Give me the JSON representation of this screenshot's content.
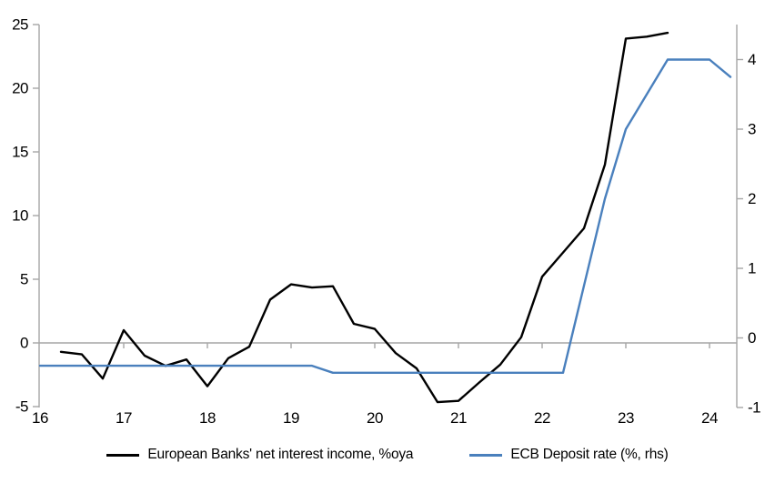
{
  "chart_data": {
    "type": "line",
    "title": "",
    "xlabel": "",
    "ylabel_left": "",
    "ylabel_right": "",
    "grid": "zero-line-only",
    "legend_position": "bottom-center",
    "x_axis": {
      "ticks": [
        16,
        17,
        18,
        19,
        20,
        21,
        22,
        23,
        24
      ],
      "range": [
        16,
        24.33
      ]
    },
    "left_axis": {
      "ticks": [
        -5,
        0,
        5,
        10,
        15,
        20,
        25
      ],
      "range": [
        -5,
        25
      ]
    },
    "right_axis": {
      "ticks": [
        -1,
        0,
        1,
        2,
        3,
        4
      ],
      "range": [
        -1,
        4.5
      ]
    },
    "series": [
      {
        "name": "European Banks' net interest income, %oya",
        "axis": "left",
        "color": "#000000",
        "x": [
          16.25,
          16.5,
          16.75,
          17.0,
          17.25,
          17.5,
          17.75,
          18.0,
          18.25,
          18.5,
          18.75,
          19.0,
          19.25,
          19.5,
          19.75,
          20.0,
          20.25,
          20.5,
          20.75,
          21.0,
          21.25,
          21.5,
          21.75,
          22.0,
          22.25,
          22.5,
          22.75,
          23.0,
          23.25,
          23.5
        ],
        "values": [
          -0.7,
          -0.9,
          -2.8,
          1.0,
          -1.0,
          -1.8,
          -1.3,
          -3.4,
          -1.2,
          -0.3,
          3.4,
          4.6,
          4.35,
          4.45,
          1.5,
          1.1,
          -0.8,
          -2.0,
          -4.65,
          -4.55,
          -3.1,
          -1.7,
          0.45,
          5.2,
          7.1,
          9.0,
          14.0,
          23.9,
          24.05,
          24.35
        ]
      },
      {
        "name": "ECB Deposit rate (%, rhs)",
        "axis": "right",
        "color": "#4a80bd",
        "x": [
          16.0,
          16.25,
          16.5,
          16.75,
          17.0,
          17.25,
          17.5,
          17.75,
          18.0,
          18.25,
          18.5,
          18.75,
          19.0,
          19.25,
          19.5,
          19.75,
          20.0,
          20.25,
          20.5,
          20.75,
          21.0,
          21.25,
          21.5,
          21.75,
          22.0,
          22.25,
          22.5,
          22.75,
          23.0,
          23.25,
          23.5,
          23.75,
          24.0,
          24.25
        ],
        "values": [
          -0.4,
          -0.4,
          -0.4,
          -0.4,
          -0.4,
          -0.4,
          -0.4,
          -0.4,
          -0.4,
          -0.4,
          -0.4,
          -0.4,
          -0.4,
          -0.4,
          -0.5,
          -0.5,
          -0.5,
          -0.5,
          -0.5,
          -0.5,
          -0.5,
          -0.5,
          -0.5,
          -0.5,
          -0.5,
          -0.5,
          0.75,
          2.0,
          3.0,
          3.5,
          4.0,
          4.0,
          4.0,
          3.75
        ]
      }
    ]
  },
  "legend": {
    "items": [
      {
        "label": "European Banks' net interest income, %oya"
      },
      {
        "label": "ECB Deposit rate (%, rhs)"
      }
    ]
  },
  "colors": {
    "axis_gray": "#a6a6a6",
    "text": "#000000",
    "background": "#ffffff"
  }
}
